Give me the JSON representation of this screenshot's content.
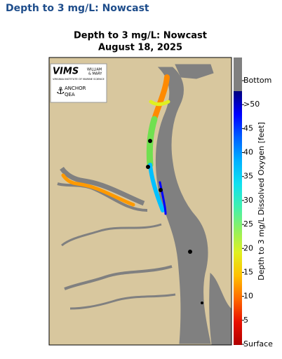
{
  "header": {
    "title": "Depth to 3 mg/L: Nowcast"
  },
  "figure": {
    "title": "Depth to 3 mg/L: Nowcast",
    "date": "August 18, 2025",
    "logo": {
      "vims": "VIMS",
      "william": "WILLIAM",
      "mary": "& MARY",
      "institute": "VIRGINIA INSTITUTE OF MARINE SCIENCE",
      "anchor": "ANCHOR",
      "qea": "QEA"
    }
  },
  "colorbar": {
    "label": "Depth to 3 mg/L Dissolved Oxygen [feet]",
    "ticks": [
      "Bottom",
      ">50",
      "45",
      "40",
      "35",
      "30",
      "25",
      "20",
      "15",
      "10",
      "5",
      "Surface"
    ],
    "bottom_color": "#808080",
    "colors": [
      "#00007f",
      "#0000ff",
      "#0060ff",
      "#00b0ff",
      "#10e0f0",
      "#40f0b0",
      "#90f060",
      "#e0f020",
      "#ffc000",
      "#ff6a00",
      "#e81000",
      "#b00000"
    ]
  }
}
